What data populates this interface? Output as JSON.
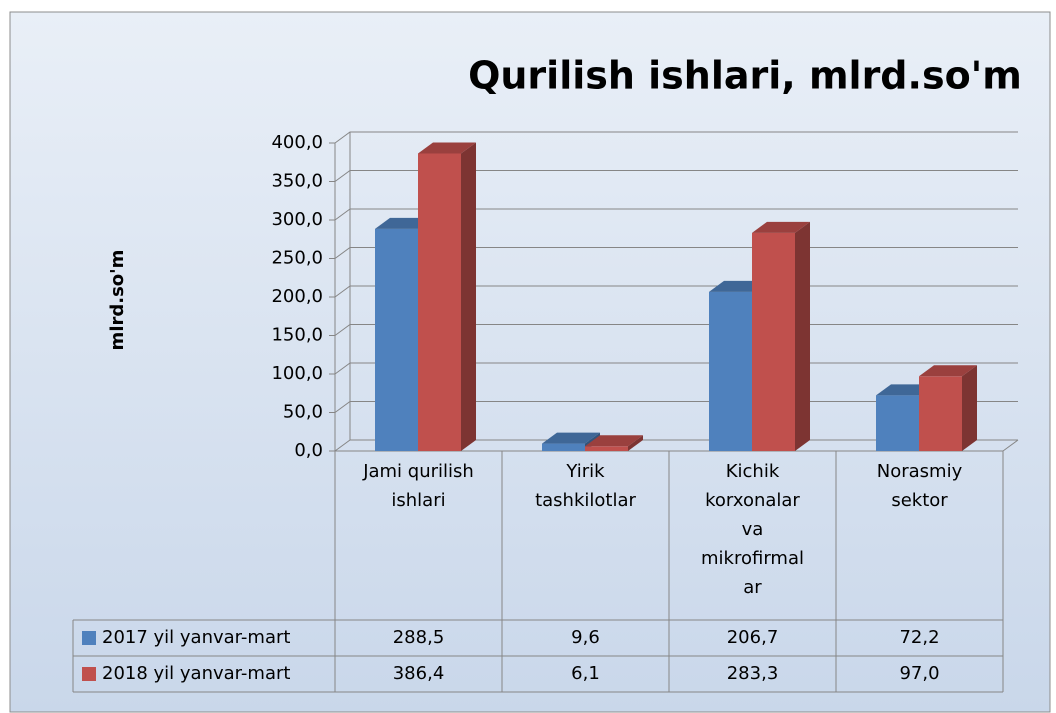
{
  "chart_data": {
    "type": "bar3d",
    "title": "Qurilish ishlari, mlrd.so'm",
    "y_label": "mlrd.so'm",
    "categories": [
      "Jami qurilish ishlari",
      "Yirik tashkilotlar",
      "Kichik korxonalar va mikrofirmalar",
      "Norasmiy sektor"
    ],
    "series": [
      {
        "name": "2017 yil yanvar-mart",
        "color": "#4f81bd",
        "values": [
          288.5,
          9.6,
          206.7,
          72.2
        ],
        "value_labels": [
          "288,5",
          "9,6",
          "206,7",
          "72,2"
        ]
      },
      {
        "name": "2018 yil yanvar-mart",
        "color": "#c0504d",
        "values": [
          386.4,
          6.1,
          283.3,
          97.0
        ],
        "value_labels": [
          "386,4",
          "6,1",
          "283,3",
          "97,0"
        ]
      }
    ],
    "ylim": [
      0,
      400
    ],
    "yticks": [
      {
        "value": 0,
        "label": "0,0"
      },
      {
        "value": 50,
        "label": "50,0"
      },
      {
        "value": 100,
        "label": "100,0"
      },
      {
        "value": 150,
        "label": "150,0"
      },
      {
        "value": 200,
        "label": "200,0"
      },
      {
        "value": 250,
        "label": "250,0"
      },
      {
        "value": 300,
        "label": "300,0"
      },
      {
        "value": 350,
        "label": "350,0"
      },
      {
        "value": 400,
        "label": "400,0"
      }
    ],
    "grid": true
  }
}
